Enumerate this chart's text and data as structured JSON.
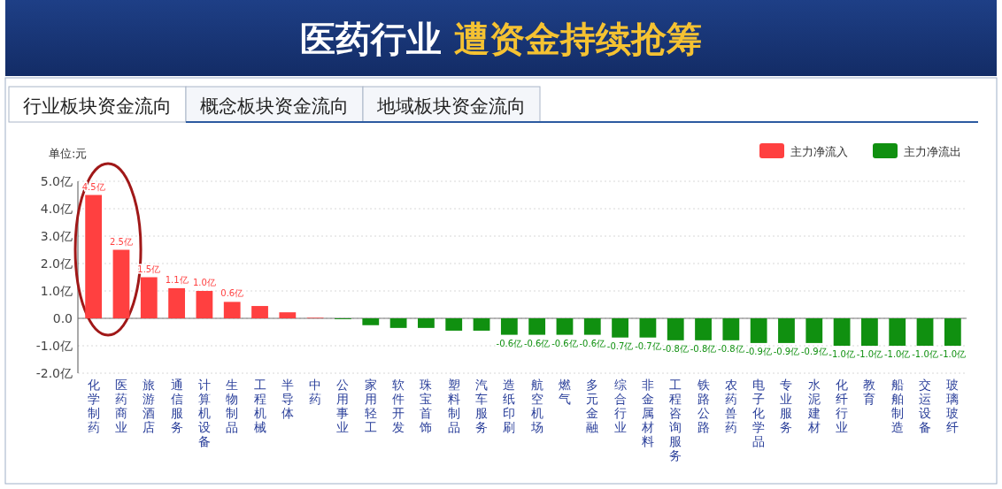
{
  "chart_data": {
    "type": "bar",
    "title": "医药行业 遭资金持续抢筹",
    "ylabel": "单位:元",
    "annotations": [
      "行业板块资金流向",
      "概念板块资金流向",
      "地域板块资金流向"
    ],
    "categories": [
      "化学制药",
      "医药商业",
      "旅游酒店",
      "通信服务",
      "计算机设备",
      "生物制品",
      "工程机械",
      "半导体",
      "中药",
      "公用事业",
      "家用轻工",
      "软件开发",
      "珠宝首饰",
      "塑料制品",
      "汽车服务",
      "造纸印刷",
      "航空机场",
      "燃气",
      "多元金融",
      "综合行业",
      "非金属材料",
      "工程咨询服务",
      "铁路公路",
      "农药兽药",
      "电子化学品",
      "专业服务",
      "水泥建材",
      "化纤行业",
      "教育",
      "船舶制造",
      "交运设备",
      "玻璃玻纤"
    ],
    "series": [
      {
        "name": "主力净流入",
        "color": "#ff4040",
        "values": [
          4.5,
          2.5,
          1.5,
          1.1,
          1.0,
          0.6,
          0.45,
          0.22,
          0.02,
          null,
          null,
          null,
          null,
          null,
          null,
          null,
          null,
          null,
          null,
          null,
          null,
          null,
          null,
          null,
          null,
          null,
          null,
          null,
          null,
          null,
          null,
          null
        ],
        "value_labels": [
          "4.5亿",
          "2.5亿",
          "1.5亿",
          "1.1亿",
          "1.0亿",
          "0.6亿",
          null,
          null,
          null,
          null,
          null,
          null,
          null,
          null,
          null,
          null,
          null,
          null,
          null,
          null,
          null,
          null,
          null,
          null,
          null,
          null,
          null,
          null,
          null,
          null,
          null,
          null
        ]
      },
      {
        "name": "主力净流出",
        "color": "#109010",
        "values": [
          null,
          null,
          null,
          null,
          null,
          null,
          null,
          null,
          null,
          -0.03,
          -0.25,
          -0.35,
          -0.35,
          -0.45,
          -0.45,
          -0.6,
          -0.6,
          -0.6,
          -0.6,
          -0.7,
          -0.7,
          -0.8,
          -0.8,
          -0.8,
          -0.9,
          -0.9,
          -0.9,
          -1.0,
          -1.0,
          -1.0,
          -1.0,
          -1.0
        ],
        "value_labels": [
          null,
          null,
          null,
          null,
          null,
          null,
          null,
          null,
          null,
          null,
          null,
          null,
          null,
          null,
          null,
          "-0.6亿",
          "-0.6亿",
          "-0.6亿",
          "-0.6亿",
          "-0.7亿",
          "-0.7亿",
          "-0.8亿",
          "-0.8亿",
          "-0.8亿",
          "-0.9亿",
          "-0.9亿",
          "-0.9亿",
          "-1.0亿",
          "-1.0亿",
          "-1.0亿",
          "-1.0亿",
          "-1.0亿"
        ]
      }
    ],
    "ylim": [
      -2.0,
      5.0
    ],
    "yticks": [
      {
        "value": -2,
        "label": "-2.0亿"
      },
      {
        "value": -1,
        "label": "-1.0亿"
      },
      {
        "value": 0,
        "label": "0.0"
      },
      {
        "value": 1,
        "label": "1.0亿"
      },
      {
        "value": 2,
        "label": "2.0亿"
      },
      {
        "value": 3,
        "label": "3.0亿"
      },
      {
        "value": 4,
        "label": "4.0亿"
      },
      {
        "value": 5,
        "label": "5.0亿"
      }
    ],
    "grid": "y",
    "legend": "top right"
  }
}
